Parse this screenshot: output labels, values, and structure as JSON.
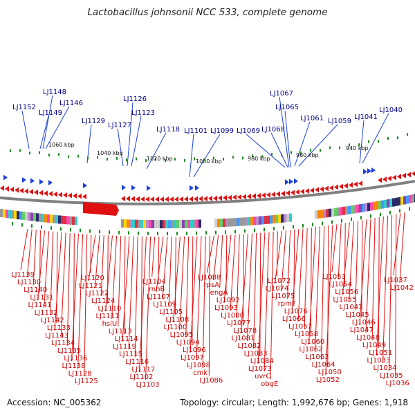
{
  "title": "Lactobacillus johnsonii NCC 533, complete genome",
  "accession": "Accession: NC_005362",
  "summary": "Topology: circular; Length: 1,992,676 bp; Genes: 1,918",
  "colors": {
    "forward": "#1a3fe0",
    "reverse": "#e01010",
    "backbone": "#808080",
    "tick": "#1a8a1a",
    "top_label": "#00008b",
    "bottom_label": "#cc0000"
  },
  "kbp_ticks": [
    "1060 kbp",
    "1040 kbp",
    "1020 kbp",
    "1000 kbp",
    "980 kbp",
    "960 kbp",
    "940 kbp"
  ],
  "top_labels": [
    "LJ1152",
    "LJ1149",
    "LJ1148",
    "LJ1146",
    "LJ1129",
    "LJ1127",
    "LJ1126",
    "LJ1123",
    "LJ1118",
    "LJ1101",
    "LJ1099",
    "LJ1069",
    "LJ1068",
    "LJ1067",
    "LJ1065",
    "LJ1061",
    "LJ1059",
    "LJ1041",
    "LJ1040"
  ],
  "bottom_labels": [
    "LJ1139",
    "LJ1130",
    "LJ1140",
    "LJ1131",
    "LJ1141",
    "LJ1132",
    "LJ1142",
    "LJ1133",
    "LJ1143",
    "LJ1134",
    "LJ1135",
    "LJ1136",
    "LJ1138",
    "LJ1128",
    "LJ1125",
    "LJ1120",
    "LJ1121",
    "LJ1122",
    "LJ1124",
    "LJ1110",
    "LJ1111",
    "hslU",
    "LJ1113",
    "LJ1114",
    "LJ1119",
    "LJ1115",
    "LJ1116",
    "LJ1117",
    "LJ1102",
    "LJ1103",
    "LJ1104",
    "rnhB",
    "LJ1107",
    "LJ1109",
    "LJ1105",
    "LJ1108",
    "LJ1100",
    "LJ1095",
    "LJ1094",
    "LJ1096",
    "LJ1097",
    "LJ1098",
    "cmk",
    "LJ1086",
    "LJ1088",
    "rpsA",
    "engA",
    "LJ1092",
    "LJ1093",
    "LJ1080",
    "LJ1077",
    "LJ1078",
    "LJ1081",
    "LJ1082",
    "LJ1083",
    "LJ1084",
    "LJ1073",
    "uvrC",
    "obgE",
    "LJ1072",
    "LJ1074",
    "LJ1075",
    "rpmF",
    "LJ1076",
    "LJ1066",
    "LJ1057",
    "LJ1058",
    "LJ1060",
    "LJ1062",
    "LJ1063",
    "LJ1064",
    "LJ1050",
    "LJ1052",
    "LJ1053",
    "LJ1054",
    "LJ1056",
    "LJ1055",
    "LJ1043",
    "LJ1045",
    "LJ1046",
    "LJ1047",
    "LJ1048",
    "LJ1049",
    "LJ1051",
    "LJ1033",
    "LJ1034",
    "LJ1035",
    "LJ1036",
    "LJ1037",
    "LJ1042"
  ]
}
